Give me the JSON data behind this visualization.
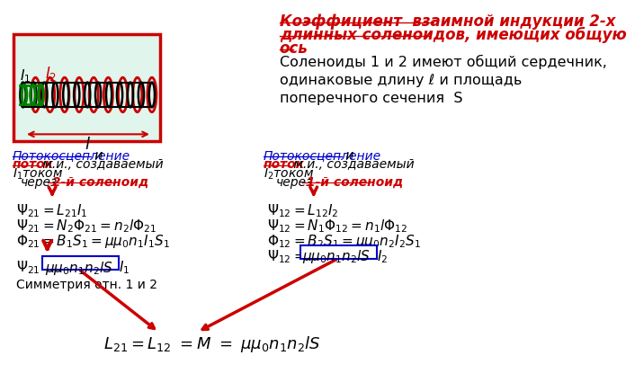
{
  "bg_color": "#ffffff",
  "solenoid_box_bg": "#e0f5ec",
  "solenoid_box_border": "#cc0000",
  "blue": "#0000cc",
  "red": "#cc0000",
  "black": "#000000",
  "green": "#008000",
  "title_lines": [
    "Коэффициент  взаимной индукции 2-х",
    "длинных соленоидов, имеющих общую",
    "ось"
  ],
  "desc": "Соленоиды 1 и 2 имеют общий сердечник,\nодинаковые длину ℓ и площадь\nпоперечного сечения  S"
}
